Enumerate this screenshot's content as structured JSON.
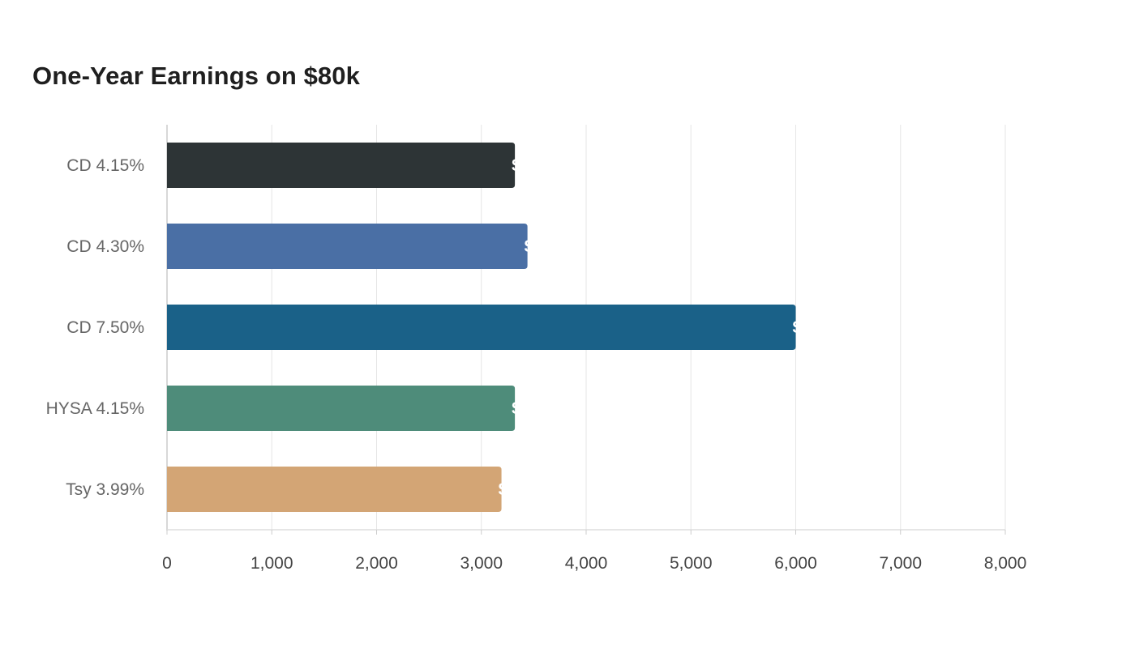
{
  "chart_data": {
    "type": "bar",
    "orientation": "horizontal",
    "title": "One-Year Earnings on $80k",
    "xlabel": "",
    "ylabel": "",
    "categories": [
      "CD 4.15%",
      "CD 4.30%",
      "CD 7.50%",
      "HYSA 4.15%",
      "Tsy 3.99%"
    ],
    "values": [
      3320,
      3440,
      6000,
      3320,
      3192
    ],
    "colors": [
      "#2d3436",
      "#4a6fa5",
      "#1a6188",
      "#4e8c7a",
      "#d3a575"
    ],
    "xlim": [
      0,
      8000
    ],
    "xticks": [
      0,
      1000,
      2000,
      3000,
      4000,
      5000,
      6000,
      7000,
      8000
    ],
    "xtick_labels": [
      "0",
      "1,000",
      "2,000",
      "3,000",
      "4,000",
      "5,000",
      "6,000",
      "7,000",
      "8,000"
    ],
    "grid": "vertical",
    "legend": "none"
  }
}
